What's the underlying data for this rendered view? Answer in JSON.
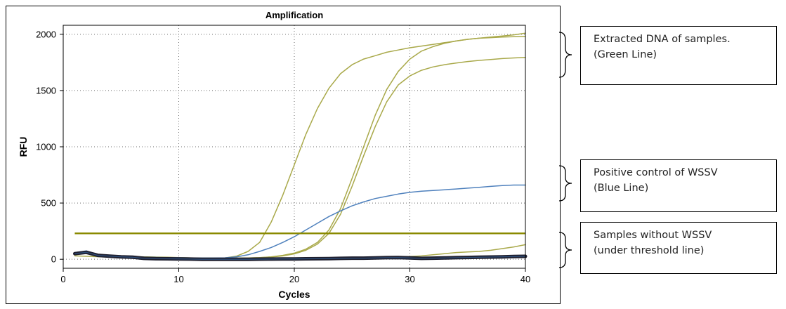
{
  "chart_data": {
    "type": "line",
    "title": "Amplification",
    "xlabel": "Cycles",
    "ylabel": "RFU",
    "xlim": [
      0,
      40
    ],
    "ylim": [
      -80,
      2080
    ],
    "x_ticks": [
      "0",
      "10",
      "20",
      "30",
      "40"
    ],
    "y_ticks": [
      "0",
      "500",
      "1000",
      "1500",
      "2000"
    ],
    "grid": true,
    "threshold": 230,
    "series": [
      {
        "color": "#a9a94a",
        "x": [
          1,
          2,
          3,
          4,
          5,
          6,
          7,
          8,
          9,
          10,
          11,
          12,
          13,
          14,
          15,
          16,
          17,
          18,
          19,
          20,
          21,
          22,
          23,
          24,
          25,
          26,
          27,
          28,
          29,
          30,
          31,
          32,
          33,
          34,
          35,
          36,
          37,
          38,
          39,
          40
        ],
        "y": [
          58,
          70,
          40,
          32,
          28,
          24,
          22,
          20,
          18,
          15,
          12,
          10,
          10,
          12,
          28,
          70,
          150,
          330,
          570,
          840,
          1110,
          1340,
          1520,
          1650,
          1730,
          1780,
          1810,
          1840,
          1860,
          1880,
          1895,
          1910,
          1925,
          1940,
          1955,
          1965,
          1975,
          1985,
          1995,
          2010
        ]
      },
      {
        "color": "#a9a94a",
        "x": [
          1,
          2,
          3,
          4,
          5,
          6,
          7,
          8,
          9,
          10,
          11,
          12,
          13,
          14,
          15,
          16,
          17,
          18,
          19,
          20,
          21,
          22,
          23,
          24,
          25,
          26,
          27,
          28,
          29,
          30,
          31,
          32,
          33,
          34,
          35,
          36,
          37,
          38,
          39,
          40
        ],
        "y": [
          55,
          65,
          38,
          30,
          25,
          22,
          20,
          18,
          16,
          14,
          12,
          10,
          10,
          10,
          10,
          12,
          15,
          22,
          35,
          55,
          90,
          150,
          260,
          450,
          720,
          1000,
          1280,
          1510,
          1670,
          1780,
          1850,
          1890,
          1920,
          1940,
          1955,
          1965,
          1970,
          1975,
          1978,
          1980
        ]
      },
      {
        "color": "#a9a94a",
        "x": [
          1,
          2,
          3,
          4,
          5,
          6,
          7,
          8,
          9,
          10,
          11,
          12,
          13,
          14,
          15,
          16,
          17,
          18,
          19,
          20,
          21,
          22,
          23,
          24,
          25,
          26,
          27,
          28,
          29,
          30,
          31,
          32,
          33,
          34,
          35,
          36,
          37,
          38,
          39,
          40
        ],
        "y": [
          52,
          62,
          36,
          28,
          24,
          20,
          18,
          16,
          15,
          13,
          11,
          10,
          10,
          10,
          10,
          11,
          14,
          20,
          30,
          48,
          80,
          135,
          230,
          400,
          650,
          920,
          1180,
          1400,
          1550,
          1630,
          1680,
          1710,
          1730,
          1745,
          1758,
          1768,
          1776,
          1784,
          1790,
          1795
        ]
      },
      {
        "color": "#a9a94a",
        "x": [
          1,
          5,
          10,
          15,
          20,
          25,
          28,
          30,
          31,
          32,
          33,
          34,
          35,
          36,
          37,
          38,
          39,
          40
        ],
        "y": [
          30,
          15,
          5,
          5,
          8,
          15,
          20,
          25,
          30,
          40,
          50,
          60,
          65,
          70,
          80,
          95,
          110,
          130
        ]
      },
      {
        "color": "#4f81bd",
        "x": [
          1,
          2,
          3,
          4,
          5,
          6,
          7,
          8,
          9,
          10,
          11,
          12,
          13,
          14,
          15,
          16,
          17,
          18,
          19,
          20,
          21,
          22,
          23,
          24,
          25,
          26,
          27,
          28,
          29,
          30,
          31,
          32,
          33,
          34,
          35,
          36,
          37,
          38,
          39,
          40
        ],
        "y": [
          60,
          75,
          42,
          32,
          26,
          22,
          19,
          17,
          15,
          14,
          12,
          11,
          11,
          13,
          22,
          40,
          70,
          105,
          150,
          200,
          260,
          320,
          380,
          430,
          475,
          510,
          540,
          560,
          580,
          595,
          605,
          612,
          618,
          625,
          632,
          640,
          648,
          655,
          660,
          660
        ]
      },
      {
        "color": "#1f1f2e",
        "x": [
          1,
          2,
          3,
          4,
          5,
          6,
          7,
          8,
          9,
          10,
          11,
          12,
          13,
          14,
          15,
          16,
          17,
          18,
          19,
          20,
          21,
          22,
          23,
          24,
          25,
          26,
          27,
          28,
          29,
          30,
          31,
          32,
          33,
          34,
          35,
          36,
          37,
          38,
          39,
          40
        ],
        "y": [
          50,
          62,
          35,
          28,
          22,
          18,
          8,
          5,
          4,
          3,
          2,
          0,
          0,
          0,
          0,
          0,
          1,
          2,
          3,
          3,
          4,
          5,
          6,
          8,
          10,
          10,
          12,
          14,
          15,
          12,
          8,
          10,
          12,
          14,
          16,
          18,
          20,
          22,
          24,
          26
        ]
      }
    ]
  },
  "annotations": [
    {
      "lines": [
        "Extracted DNA of  samples.",
        "(Green Line)"
      ]
    },
    {
      "lines": [
        "Positive control of WSSV",
        "(Blue Line)"
      ]
    },
    {
      "lines": [
        "Samples without WSSV",
        "(under threshold line)"
      ]
    }
  ]
}
